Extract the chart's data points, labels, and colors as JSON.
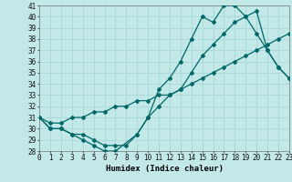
{
  "xlabel": "Humidex (Indice chaleur)",
  "xlim": [
    0,
    23
  ],
  "ylim": [
    28,
    41
  ],
  "xticks": [
    0,
    1,
    2,
    3,
    4,
    5,
    6,
    7,
    8,
    9,
    10,
    11,
    12,
    13,
    14,
    15,
    16,
    17,
    18,
    19,
    20,
    21,
    22,
    23
  ],
  "yticks": [
    28,
    29,
    30,
    31,
    32,
    33,
    34,
    35,
    36,
    37,
    38,
    39,
    40,
    41
  ],
  "bg_color": "#c2e8e8",
  "line_color": "#006868",
  "line1_x": [
    0,
    1,
    2,
    3,
    4,
    5,
    6,
    7,
    9,
    10,
    11,
    12,
    13,
    14,
    15,
    16,
    17,
    18,
    19,
    20,
    21,
    22,
    23
  ],
  "line1_y": [
    31,
    30,
    30,
    29.5,
    29,
    28.5,
    28,
    28,
    29.5,
    31,
    33.5,
    34.5,
    36,
    38,
    40,
    39.5,
    41,
    41,
    40,
    38.5,
    37,
    35.5,
    34.5
  ],
  "line2_x": [
    0,
    1,
    2,
    3,
    4,
    5,
    6,
    7,
    8,
    9,
    10,
    11,
    12,
    13,
    14,
    15,
    16,
    17,
    18,
    19,
    20,
    21,
    22,
    23
  ],
  "line2_y": [
    31,
    30,
    30,
    29.5,
    29.5,
    29,
    28.5,
    28.5,
    28.5,
    29.5,
    31,
    32,
    33,
    33.5,
    35,
    36.5,
    37.5,
    38.5,
    39.5,
    40,
    40.5,
    37,
    35.5,
    34.5
  ],
  "line3_x": [
    0,
    1,
    2,
    3,
    4,
    5,
    6,
    7,
    8,
    9,
    10,
    11,
    12,
    13,
    14,
    15,
    16,
    17,
    18,
    19,
    20,
    21,
    22,
    23
  ],
  "line3_y": [
    31,
    30.5,
    30.5,
    31,
    31,
    31.5,
    31.5,
    32,
    32,
    32.5,
    32.5,
    33,
    33,
    33.5,
    34,
    34.5,
    35,
    35.5,
    36,
    36.5,
    37,
    37.5,
    38,
    38.5
  ],
  "tick_fontsize": 5.5,
  "label_fontsize": 6.5,
  "grid_color": "#a8d8d8"
}
